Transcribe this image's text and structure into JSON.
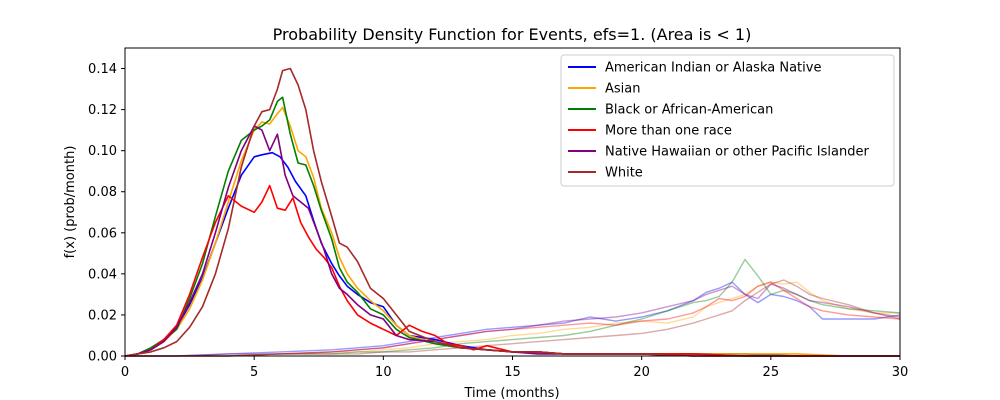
{
  "chart_data": {
    "type": "line",
    "title": "Probability Density Function for Events, efs=1.  (Area is < 1)",
    "xlabel": "Time (months)",
    "ylabel": "f(x) (prob/month)",
    "xlim": [
      0,
      30
    ],
    "ylim": [
      0,
      0.15
    ],
    "xticks": [
      0,
      5,
      10,
      15,
      20,
      25,
      30
    ],
    "yticks": [
      0.0,
      0.02,
      0.04,
      0.06,
      0.08,
      0.1,
      0.12,
      0.14
    ],
    "ytick_labels": [
      "0.00",
      "0.02",
      "0.04",
      "0.06",
      "0.08",
      "0.10",
      "0.12",
      "0.14"
    ],
    "legend_position": "top-right",
    "grid": false,
    "series": [
      {
        "name": "American Indian or Alaska Native",
        "color": "#0000ff",
        "x": [
          0,
          0.5,
          1,
          1.5,
          2,
          2.5,
          3,
          3.5,
          4,
          4.5,
          5,
          5.3,
          5.7,
          6,
          6.3,
          6.6,
          7,
          7.3,
          7.6,
          8,
          8.3,
          8.6,
          9,
          9.5,
          10,
          10.5,
          11,
          12,
          13,
          14,
          15,
          16,
          17,
          18,
          19,
          20,
          22,
          24,
          26,
          28,
          30
        ],
        "y": [
          0,
          0.001,
          0.003,
          0.008,
          0.014,
          0.025,
          0.038,
          0.055,
          0.072,
          0.088,
          0.097,
          0.098,
          0.099,
          0.097,
          0.092,
          0.085,
          0.078,
          0.066,
          0.055,
          0.045,
          0.039,
          0.034,
          0.03,
          0.026,
          0.024,
          0.015,
          0.01,
          0.008,
          0.005,
          0.003,
          0.002,
          0.002,
          0.001,
          0.001,
          0.001,
          0.001,
          0.001,
          0.001,
          0.0,
          0.0,
          0.0
        ]
      },
      {
        "name": "Asian",
        "color": "#ffa500",
        "x": [
          0,
          0.5,
          1,
          1.5,
          2,
          2.5,
          3,
          3.5,
          4,
          4.5,
          5,
          5.3,
          5.6,
          5.9,
          6.1,
          6.4,
          6.7,
          7,
          7.3,
          7.6,
          8,
          8.3,
          8.6,
          9,
          9.5,
          10,
          10.5,
          11,
          12,
          13,
          14,
          15,
          16,
          17,
          18,
          19,
          20,
          22,
          24,
          26,
          28,
          30
        ],
        "y": [
          0,
          0.001,
          0.003,
          0.007,
          0.013,
          0.023,
          0.037,
          0.055,
          0.075,
          0.095,
          0.11,
          0.114,
          0.113,
          0.118,
          0.121,
          0.112,
          0.1,
          0.097,
          0.087,
          0.072,
          0.06,
          0.048,
          0.04,
          0.033,
          0.027,
          0.022,
          0.015,
          0.01,
          0.006,
          0.004,
          0.003,
          0.002,
          0.002,
          0.001,
          0.001,
          0.001,
          0.001,
          0.001,
          0.001,
          0.001,
          0.0,
          0.0
        ]
      },
      {
        "name": "Black or African-American",
        "color": "#008000",
        "x": [
          0,
          0.5,
          1,
          1.5,
          2,
          2.5,
          3,
          3.5,
          4,
          4.5,
          5,
          5.3,
          5.6,
          5.9,
          6.1,
          6.4,
          6.7,
          7,
          7.3,
          7.6,
          8,
          8.3,
          8.6,
          9,
          9.5,
          10,
          10.5,
          11,
          12,
          13,
          14,
          15,
          16,
          17,
          18,
          19,
          20,
          22,
          24,
          26,
          28,
          30
        ],
        "y": [
          0,
          0.001,
          0.004,
          0.008,
          0.013,
          0.028,
          0.045,
          0.068,
          0.09,
          0.105,
          0.11,
          0.112,
          0.115,
          0.124,
          0.126,
          0.108,
          0.094,
          0.093,
          0.083,
          0.071,
          0.057,
          0.043,
          0.036,
          0.031,
          0.023,
          0.02,
          0.013,
          0.009,
          0.006,
          0.004,
          0.003,
          0.002,
          0.002,
          0.001,
          0.001,
          0.001,
          0.001,
          0.001,
          0.0,
          0.0,
          0.0,
          0.0
        ]
      },
      {
        "name": "More than one race",
        "color": "#ff0000",
        "x": [
          0,
          0.5,
          1,
          1.5,
          2,
          2.5,
          3,
          3.5,
          4,
          4.5,
          5,
          5.3,
          5.6,
          5.9,
          6.2,
          6.5,
          6.8,
          7.1,
          7.4,
          7.7,
          8,
          8.3,
          8.6,
          9,
          9.5,
          10,
          10.5,
          11,
          11.5,
          12,
          12.5,
          13,
          13.5,
          14,
          15,
          16,
          17,
          18,
          19,
          20,
          22,
          24,
          26,
          28,
          30
        ],
        "y": [
          0,
          0.001,
          0.003,
          0.008,
          0.015,
          0.03,
          0.048,
          0.065,
          0.078,
          0.073,
          0.07,
          0.075,
          0.083,
          0.072,
          0.071,
          0.077,
          0.065,
          0.058,
          0.052,
          0.048,
          0.043,
          0.034,
          0.027,
          0.02,
          0.016,
          0.013,
          0.01,
          0.015,
          0.012,
          0.01,
          0.006,
          0.005,
          0.003,
          0.005,
          0.002,
          0.002,
          0.001,
          0.001,
          0.001,
          0.001,
          0.001,
          0.0,
          0.0,
          0.0,
          0.0
        ]
      },
      {
        "name": "Native Hawaiian or other Pacific Islander",
        "color": "#800080",
        "x": [
          0,
          0.5,
          1,
          1.5,
          2,
          2.5,
          3,
          3.5,
          4,
          4.5,
          5,
          5.3,
          5.6,
          5.9,
          6.2,
          6.5,
          6.8,
          7.1,
          7.4,
          7.7,
          8,
          8.3,
          8.6,
          9,
          9.5,
          10,
          10.5,
          11,
          12,
          13,
          14,
          15,
          16,
          17,
          18,
          19,
          20,
          22,
          24,
          26,
          28,
          30
        ],
        "y": [
          0,
          0.001,
          0.003,
          0.007,
          0.014,
          0.026,
          0.04,
          0.06,
          0.082,
          0.1,
          0.112,
          0.11,
          0.1,
          0.108,
          0.088,
          0.078,
          0.075,
          0.072,
          0.062,
          0.052,
          0.04,
          0.033,
          0.03,
          0.025,
          0.02,
          0.018,
          0.01,
          0.008,
          0.007,
          0.004,
          0.003,
          0.002,
          0.001,
          0.001,
          0.001,
          0.001,
          0.001,
          0.0,
          0.0,
          0.0,
          0.0,
          0.0
        ]
      },
      {
        "name": "White",
        "color": "#a52a2a",
        "x": [
          0,
          0.5,
          1,
          1.5,
          2,
          2.5,
          3,
          3.5,
          4,
          4.5,
          5,
          5.3,
          5.6,
          5.9,
          6.1,
          6.4,
          6.7,
          7,
          7.3,
          7.6,
          8,
          8.3,
          8.6,
          9,
          9.5,
          10,
          10.5,
          11,
          12,
          13,
          14,
          15,
          16,
          17,
          18,
          19,
          20,
          22,
          24,
          26,
          28,
          30
        ],
        "y": [
          0,
          0.001,
          0.002,
          0.004,
          0.007,
          0.014,
          0.024,
          0.04,
          0.062,
          0.092,
          0.112,
          0.119,
          0.12,
          0.13,
          0.139,
          0.14,
          0.132,
          0.12,
          0.1,
          0.085,
          0.068,
          0.055,
          0.053,
          0.046,
          0.033,
          0.028,
          0.02,
          0.012,
          0.007,
          0.004,
          0.003,
          0.002,
          0.002,
          0.001,
          0.001,
          0.001,
          0.001,
          0.0,
          0.0,
          0.0,
          0.0,
          0.0
        ]
      },
      {
        "name": "",
        "color": "#0000ff",
        "faint": true,
        "x": [
          0,
          2,
          4,
          6,
          8,
          9,
          10,
          11,
          12,
          13,
          14,
          15,
          16,
          17,
          18,
          19,
          20,
          21,
          22,
          22.5,
          23,
          23.5,
          24,
          24.5,
          25,
          25.5,
          26,
          26.5,
          27,
          28,
          29,
          30
        ],
        "y": [
          0,
          0.0,
          0.001,
          0.002,
          0.003,
          0.004,
          0.005,
          0.007,
          0.009,
          0.011,
          0.013,
          0.014,
          0.015,
          0.016,
          0.019,
          0.017,
          0.019,
          0.022,
          0.027,
          0.031,
          0.033,
          0.036,
          0.03,
          0.026,
          0.03,
          0.029,
          0.027,
          0.024,
          0.018,
          0.018,
          0.018,
          0.02
        ]
      },
      {
        "name": "",
        "color": "#ffa500",
        "faint": true,
        "x": [
          0,
          2,
          4,
          6,
          8,
          9,
          10,
          11,
          12,
          13,
          14,
          15,
          16,
          17,
          18,
          19,
          20,
          21,
          22,
          22.5,
          23,
          23.5,
          24,
          24.5,
          25,
          25.5,
          26,
          26.5,
          27,
          28,
          29,
          30
        ],
        "y": [
          0,
          0.0,
          0.0,
          0.001,
          0.002,
          0.002,
          0.003,
          0.004,
          0.006,
          0.007,
          0.008,
          0.01,
          0.011,
          0.013,
          0.014,
          0.016,
          0.017,
          0.016,
          0.019,
          0.024,
          0.026,
          0.028,
          0.03,
          0.034,
          0.036,
          0.035,
          0.036,
          0.031,
          0.027,
          0.023,
          0.021,
          0.021
        ]
      },
      {
        "name": "",
        "color": "#008000",
        "faint": true,
        "x": [
          0,
          2,
          4,
          6,
          8,
          9,
          10,
          11,
          12,
          13,
          14,
          15,
          16,
          17,
          18,
          19,
          20,
          21,
          22,
          22.5,
          23,
          23.5,
          24,
          24.5,
          25,
          25.5,
          26,
          26.5,
          27,
          28,
          29,
          30
        ],
        "y": [
          0,
          0.0,
          0.0,
          0.001,
          0.001,
          0.002,
          0.002,
          0.003,
          0.004,
          0.006,
          0.007,
          0.008,
          0.009,
          0.01,
          0.012,
          0.015,
          0.018,
          0.022,
          0.026,
          0.027,
          0.029,
          0.036,
          0.047,
          0.039,
          0.03,
          0.032,
          0.03,
          0.027,
          0.025,
          0.023,
          0.022,
          0.021
        ]
      },
      {
        "name": "",
        "color": "#ff0000",
        "faint": true,
        "x": [
          0,
          2,
          4,
          6,
          8,
          9,
          10,
          11,
          12,
          13,
          14,
          15,
          16,
          17,
          18,
          19,
          20,
          21,
          22,
          22.5,
          23,
          23.5,
          24,
          24.5,
          25,
          25.5,
          26,
          26.5,
          27,
          28,
          29,
          30
        ],
        "y": [
          0,
          0.0,
          0.0,
          0.001,
          0.002,
          0.003,
          0.004,
          0.006,
          0.008,
          0.01,
          0.012,
          0.013,
          0.014,
          0.015,
          0.016,
          0.015,
          0.017,
          0.018,
          0.021,
          0.024,
          0.028,
          0.027,
          0.029,
          0.034,
          0.036,
          0.032,
          0.028,
          0.024,
          0.022,
          0.02,
          0.019,
          0.018
        ]
      },
      {
        "name": "",
        "color": "#800080",
        "faint": true,
        "x": [
          0,
          2,
          4,
          6,
          8,
          9,
          10,
          11,
          12,
          13,
          14,
          15,
          16,
          17,
          18,
          19,
          20,
          21,
          22,
          22.5,
          23,
          23.5,
          24,
          24.5,
          25,
          25.5,
          26,
          26.5,
          27,
          28,
          29,
          30
        ],
        "y": [
          0,
          0.0,
          0.001,
          0.001,
          0.002,
          0.003,
          0.004,
          0.006,
          0.008,
          0.01,
          0.012,
          0.013,
          0.015,
          0.017,
          0.018,
          0.019,
          0.021,
          0.024,
          0.027,
          0.03,
          0.032,
          0.034,
          0.03,
          0.028,
          0.035,
          0.033,
          0.03,
          0.027,
          0.026,
          0.024,
          0.021,
          0.019
        ]
      },
      {
        "name": "",
        "color": "#a52a2a",
        "faint": true,
        "x": [
          0,
          2,
          4,
          6,
          8,
          9,
          10,
          11,
          12,
          13,
          14,
          15,
          16,
          17,
          18,
          19,
          20,
          21,
          22,
          22.5,
          23,
          23.5,
          24,
          24.5,
          25,
          25.5,
          26,
          26.5,
          27,
          28,
          29,
          30
        ],
        "y": [
          0,
          0.0,
          0.0,
          0.001,
          0.001,
          0.001,
          0.002,
          0.002,
          0.003,
          0.004,
          0.005,
          0.006,
          0.007,
          0.008,
          0.009,
          0.01,
          0.011,
          0.013,
          0.016,
          0.018,
          0.02,
          0.022,
          0.027,
          0.031,
          0.035,
          0.037,
          0.034,
          0.03,
          0.028,
          0.025,
          0.021,
          0.018
        ]
      }
    ]
  }
}
